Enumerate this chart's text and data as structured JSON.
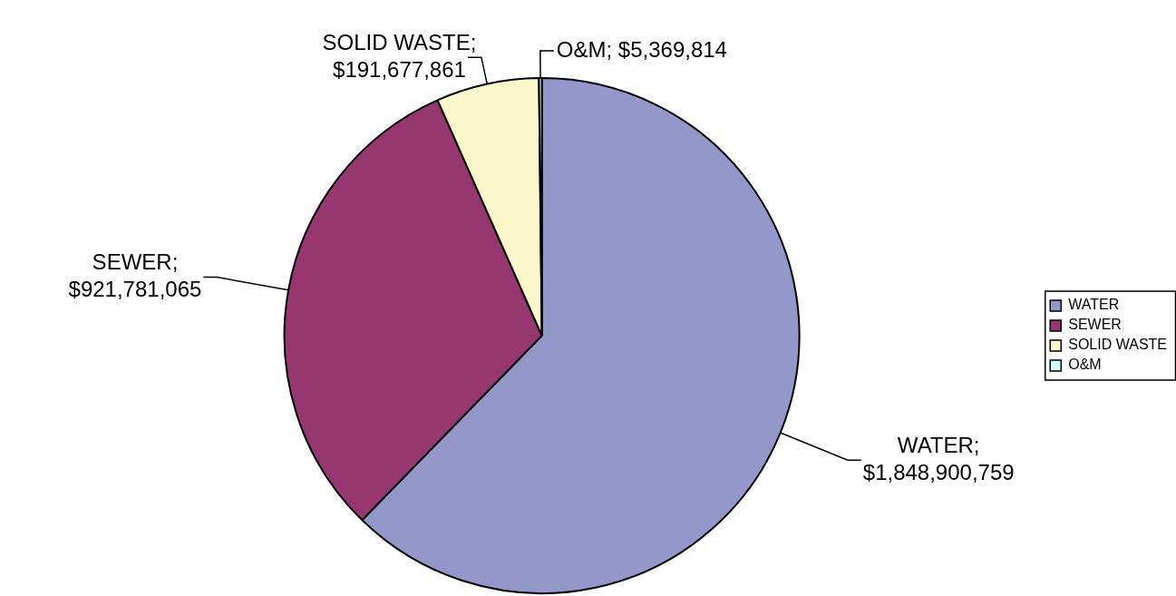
{
  "chart_data": {
    "type": "pie",
    "categories": [
      "WATER",
      "SEWER",
      "SOLID WASTE",
      "O&M"
    ],
    "values": [
      1848900759,
      921781065,
      191677861,
      5369814
    ],
    "colors": [
      "#9397c9",
      "#963771",
      "#fdf8cc",
      "#ccffff"
    ],
    "value_labels": [
      "WATER; $1,848,900,759",
      "SEWER; $921,781,065",
      "SOLID WASTE; $191,677,861",
      "O&M; $5,369,814"
    ],
    "legend": "right"
  }
}
